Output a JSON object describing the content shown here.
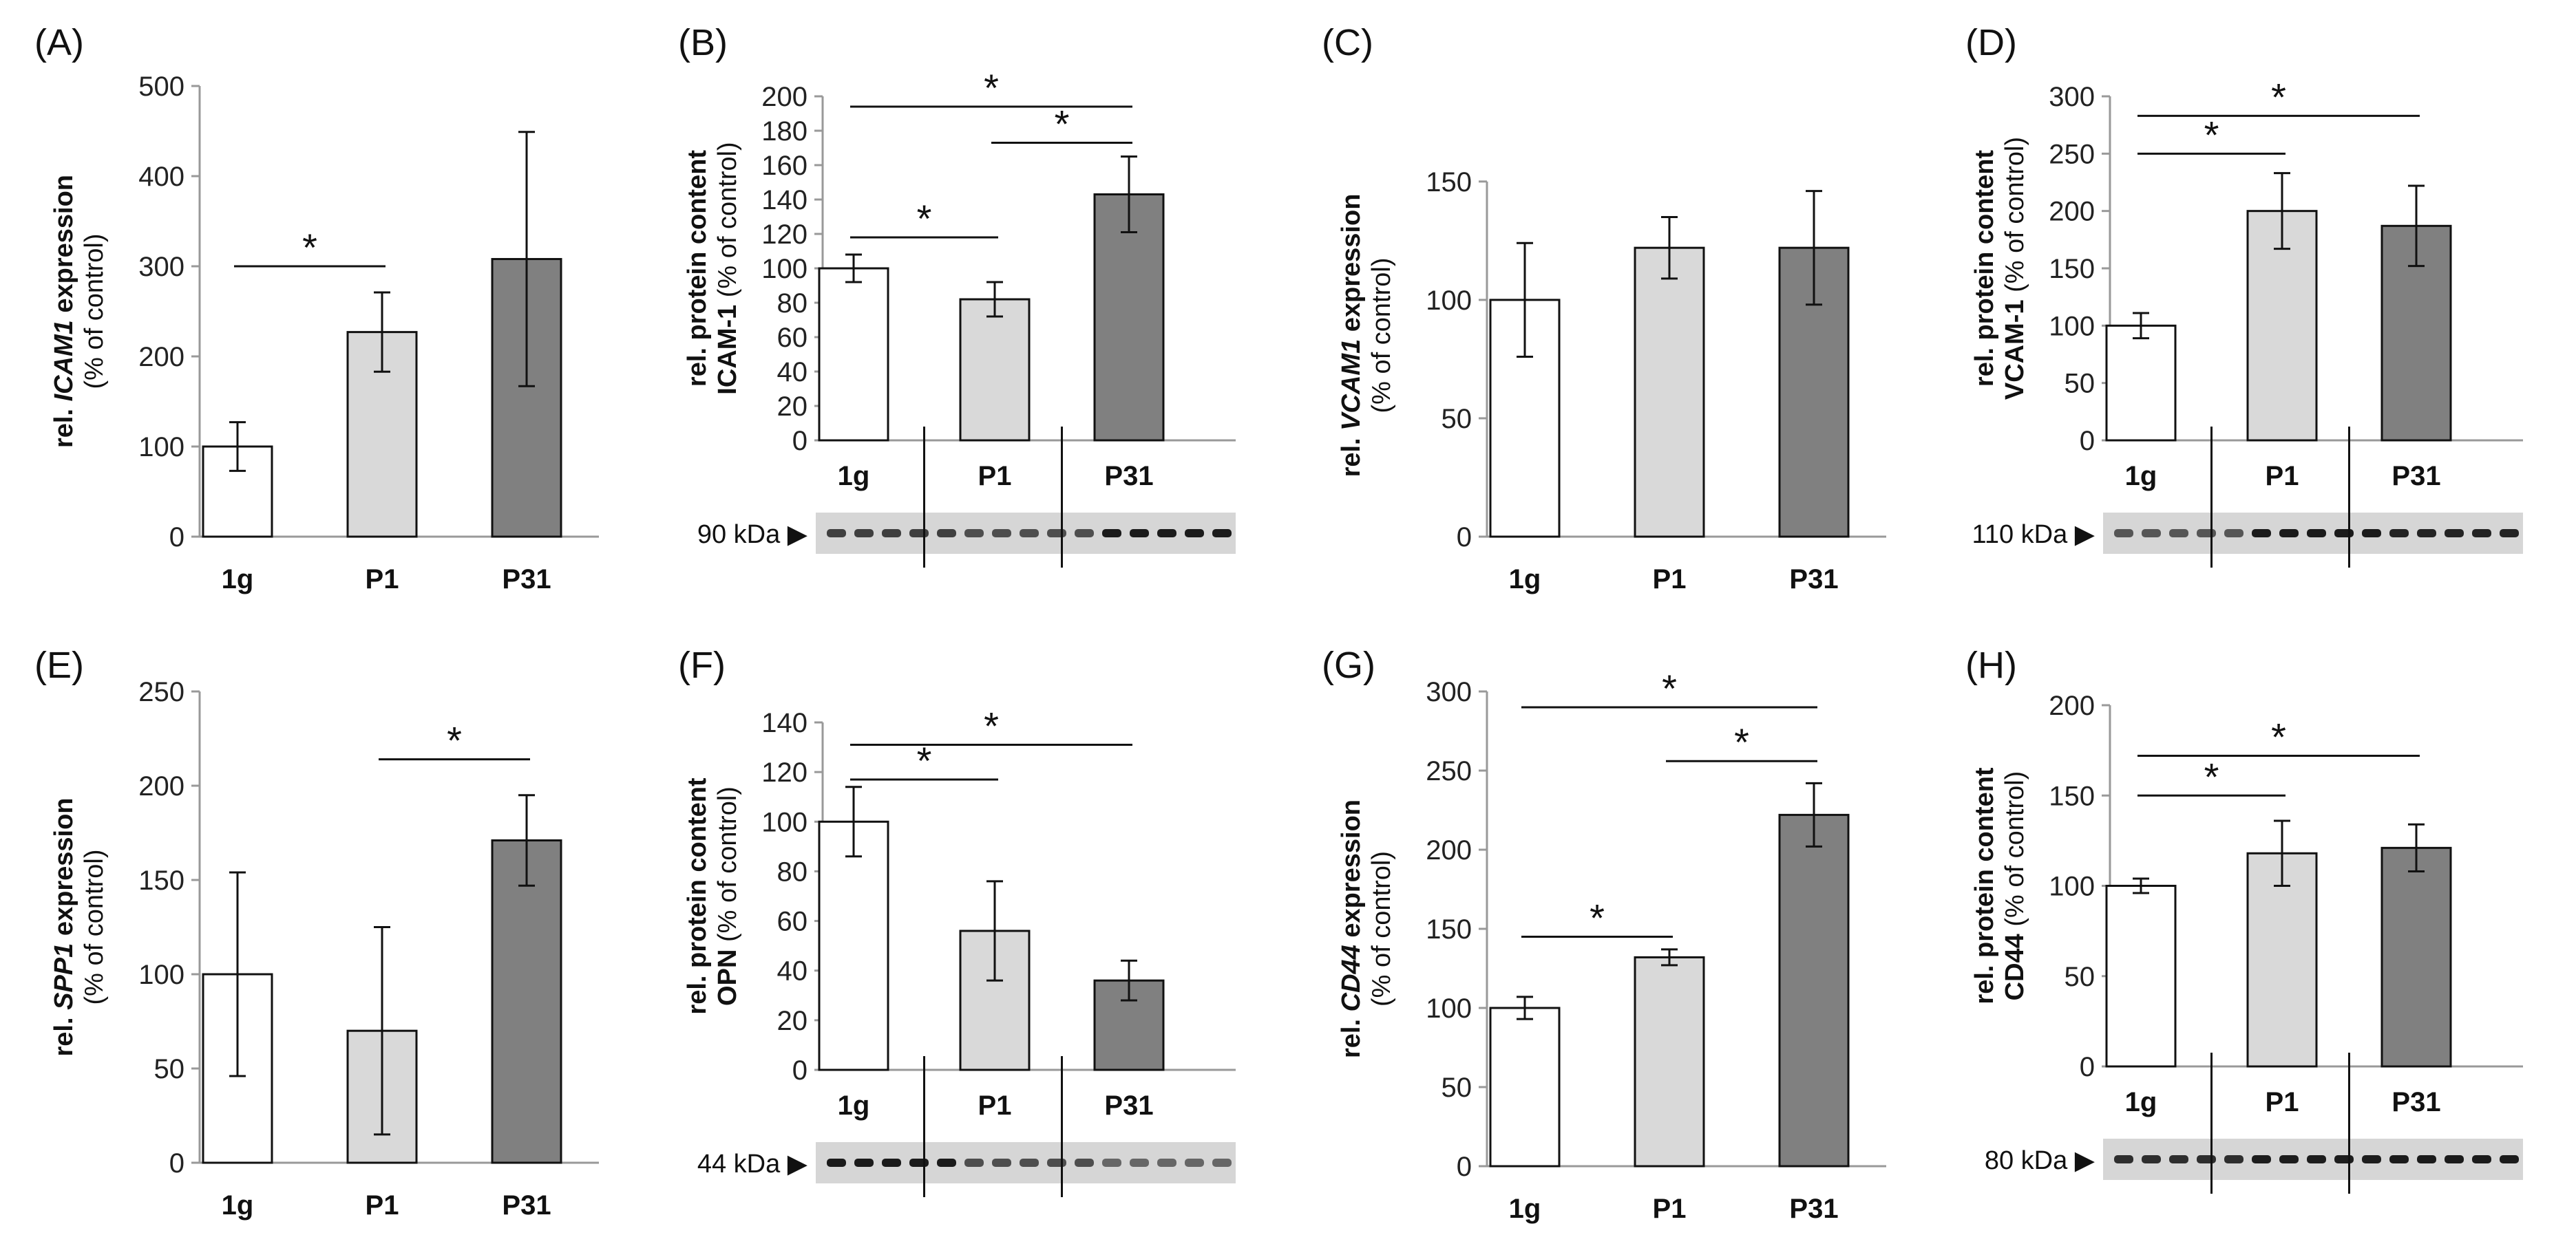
{
  "chart_data": [
    {
      "type": "bar",
      "panel_label": "(A)",
      "categories": [
        "1g",
        "P1",
        "P31"
      ],
      "values": [
        100,
        227,
        308
      ],
      "errors": [
        27,
        44,
        141
      ],
      "ylim": [
        0,
        500
      ],
      "yticks": [
        0,
        100,
        200,
        300,
        400,
        500
      ],
      "ylabel": {
        "prefix": "rel. ",
        "gene": "ICAM1",
        "suffix": " expression",
        "sub": "(% of control)"
      },
      "significance": [
        {
          "from": 0,
          "to": 1,
          "y": 300,
          "label": "*"
        }
      ],
      "colors": [
        "#ffffff",
        "#d9d9d9",
        "#808080"
      ]
    },
    {
      "type": "bar",
      "panel_label": "(B)",
      "categories": [
        "1g",
        "P1",
        "P31"
      ],
      "values": [
        100,
        82,
        143
      ],
      "errors": [
        8,
        10,
        22
      ],
      "ylim": [
        0,
        200
      ],
      "yticks": [
        0,
        20,
        40,
        60,
        80,
        100,
        120,
        140,
        160,
        180,
        200
      ],
      "ylabel": {
        "line1": "rel. protein content",
        "line2": "ICAM-1",
        "line2b": " (% of control)"
      },
      "significance": [
        {
          "from": 0,
          "to": 1,
          "y": 118,
          "label": "*"
        },
        {
          "from": 1,
          "to": 2,
          "y": 173,
          "label": "*"
        },
        {
          "from": 0,
          "to": 2,
          "y": 194,
          "label": "*"
        }
      ],
      "blot": "90 kDa ▶",
      "colors": [
        "#ffffff",
        "#d9d9d9",
        "#808080"
      ]
    },
    {
      "type": "bar",
      "panel_label": "(C)",
      "categories": [
        "1g",
        "P1",
        "P31"
      ],
      "values": [
        100,
        122,
        122
      ],
      "errors": [
        24,
        13,
        24
      ],
      "ylim": [
        0,
        170
      ],
      "yticks": [
        0,
        50,
        100,
        150
      ],
      "ylabel": {
        "prefix": "rel. ",
        "gene": "VCAM1",
        "suffix": " expression",
        "sub": "(% of control)"
      },
      "significance": [],
      "colors": [
        "#ffffff",
        "#d9d9d9",
        "#808080"
      ]
    },
    {
      "type": "bar",
      "panel_label": "(D)",
      "categories": [
        "1g",
        "P1",
        "P31"
      ],
      "values": [
        100,
        200,
        187
      ],
      "errors": [
        11,
        33,
        35
      ],
      "ylim": [
        0,
        300
      ],
      "yticks": [
        0,
        50,
        100,
        150,
        200,
        250,
        300
      ],
      "ylabel": {
        "line1": "rel. protein content",
        "line2": "VCAM-1",
        "line2b": " (% of control)"
      },
      "significance": [
        {
          "from": 0,
          "to": 1,
          "y": 250,
          "label": "*"
        },
        {
          "from": 0,
          "to": 2,
          "y": 283,
          "label": "*"
        }
      ],
      "blot": "110 kDa ▶",
      "colors": [
        "#ffffff",
        "#d9d9d9",
        "#808080"
      ]
    },
    {
      "type": "bar",
      "panel_label": "(E)",
      "categories": [
        "1g",
        "P1",
        "P31"
      ],
      "values": [
        100,
        70,
        171
      ],
      "errors": [
        54,
        55,
        24
      ],
      "ylim": [
        0,
        250
      ],
      "yticks": [
        0,
        50,
        100,
        150,
        200,
        250
      ],
      "ylabel": {
        "prefix": "rel. ",
        "gene": "SPP1",
        "suffix": " expression",
        "sub": "(% of control)"
      },
      "significance": [
        {
          "from": 1,
          "to": 2,
          "y": 214,
          "label": "*"
        }
      ],
      "colors": [
        "#ffffff",
        "#d9d9d9",
        "#808080"
      ]
    },
    {
      "type": "bar",
      "panel_label": "(F)",
      "categories": [
        "1g",
        "P1",
        "P31"
      ],
      "values": [
        100,
        56,
        36
      ],
      "errors": [
        14,
        20,
        8
      ],
      "ylim": [
        0,
        140
      ],
      "yticks": [
        0,
        20,
        40,
        60,
        80,
        100,
        120,
        140
      ],
      "ylabel": {
        "line1": "rel. protein content",
        "line2": "OPN",
        "line2b": " (% of control)"
      },
      "significance": [
        {
          "from": 0,
          "to": 1,
          "y": 117,
          "label": "*"
        },
        {
          "from": 0,
          "to": 2,
          "y": 131,
          "label": "*"
        }
      ],
      "blot": "44 kDa ▶",
      "colors": [
        "#ffffff",
        "#d9d9d9",
        "#808080"
      ]
    },
    {
      "type": "bar",
      "panel_label": "(G)",
      "categories": [
        "1g",
        "P1",
        "P31"
      ],
      "values": [
        100,
        132,
        222
      ],
      "errors": [
        7,
        5,
        20
      ],
      "ylim": [
        0,
        300
      ],
      "yticks": [
        0,
        50,
        100,
        150,
        200,
        250,
        300
      ],
      "ylabel": {
        "prefix": "rel. ",
        "gene": "CD44",
        "suffix": " expression",
        "sub": "(% of control)"
      },
      "significance": [
        {
          "from": 0,
          "to": 1,
          "y": 145,
          "label": "*"
        },
        {
          "from": 1,
          "to": 2,
          "y": 256,
          "label": "*"
        },
        {
          "from": 0,
          "to": 2,
          "y": 290,
          "label": "*"
        }
      ],
      "colors": [
        "#ffffff",
        "#d9d9d9",
        "#808080"
      ]
    },
    {
      "type": "bar",
      "panel_label": "(H)",
      "categories": [
        "1g",
        "P1",
        "P31"
      ],
      "values": [
        100,
        118,
        121
      ],
      "errors": [
        4,
        18,
        13
      ],
      "ylim": [
        0,
        200
      ],
      "yticks": [
        0,
        50,
        100,
        150,
        200
      ],
      "ylabel": {
        "line1": "rel. protein content",
        "line2": "CD44",
        "line2b": " (% of control)"
      },
      "significance": [
        {
          "from": 0,
          "to": 1,
          "y": 150,
          "label": "*"
        },
        {
          "from": 0,
          "to": 2,
          "y": 172,
          "label": "*"
        }
      ],
      "blot": "80 kDa ▶",
      "colors": [
        "#ffffff",
        "#d9d9d9",
        "#808080"
      ]
    }
  ]
}
